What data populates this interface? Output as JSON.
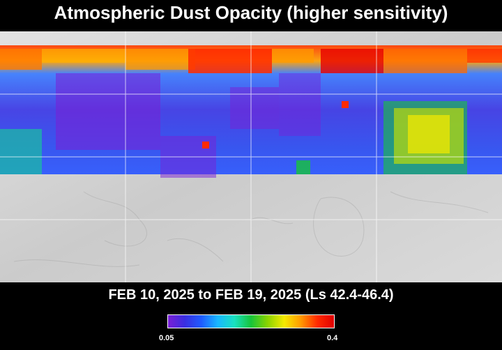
{
  "title": "Atmospheric Dust Opacity (higher sensitivity)",
  "date_range": "FEB 10, 2025 to FEB 19, 2025 (Ls 42.4-46.4)",
  "colorbar": {
    "min_label": "0.05",
    "max_label": "0.4",
    "colors": [
      "#7a1fd6",
      "#3a2ee0",
      "#1f5bff",
      "#19b7ff",
      "#19e0c0",
      "#17c43a",
      "#8ad400",
      "#f5ea00",
      "#ff9a00",
      "#ff2a00",
      "#e00000"
    ]
  },
  "colors": {
    "background": "#000000",
    "terrain": "#cfcfcf",
    "graticule": "#ffffff"
  }
}
